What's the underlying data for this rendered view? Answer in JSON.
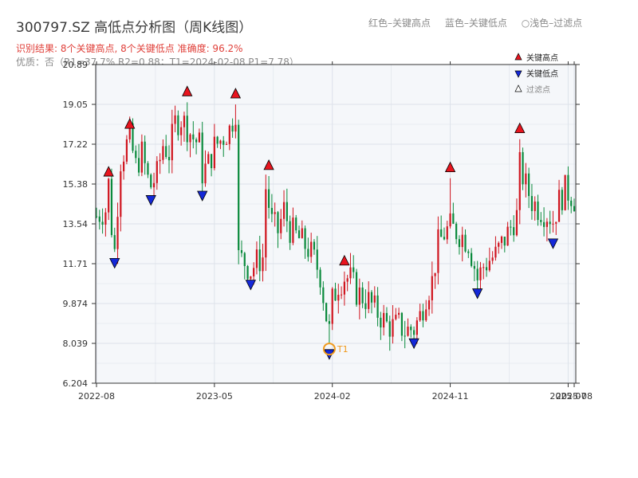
{
  "header": {
    "title": "300797.SZ 高低点分析图（周K线图）",
    "legend_red": "红色–关键高点",
    "legend_blue": "蓝色–关键低点",
    "legend_filtered": "○浅色–过滤点",
    "result": "识别结果: 8个关键高点, 8个关键低点  准确度: 96.2%",
    "quality": "优质：否（R1=37.7%  R2=0.88；T1=2024-02-08 P1=7.78）"
  },
  "colors": {
    "up": "#d0141e",
    "down": "#0a8a3c",
    "high_marker": "#e8141e",
    "low_marker": "#1428d8",
    "t1": "#f09a1e",
    "plot_bg": "#f5f7fa",
    "grid": "#dde2ea"
  },
  "chart_data": {
    "type": "candlestick",
    "title": "300797.SZ 高低点分析图（周K线图）",
    "y_ticks": [
      "6.204",
      "8.039",
      "9.874",
      "11.71",
      "13.54",
      "15.38",
      "17.22",
      "19.05",
      "20.89"
    ],
    "x_ticks": [
      {
        "label": "2022-08",
        "week": 0
      },
      {
        "label": "2023-05",
        "week": 39
      },
      {
        "label": "2024-02",
        "week": 78
      },
      {
        "label": "2024-11",
        "week": 117
      },
      {
        "label": "2025-07",
        "week": 156
      },
      {
        "label": "2025-08",
        "week": 158
      }
    ],
    "ylim": [
      6.204,
      20.89
    ],
    "xlim": [
      0,
      158
    ],
    "keypoints": [
      {
        "week": 4,
        "price": 15.6,
        "type": "high"
      },
      {
        "week": 6,
        "price": 12.1,
        "type": "low"
      },
      {
        "week": 11,
        "price": 17.8,
        "type": "high"
      },
      {
        "week": 18,
        "price": 15.0,
        "type": "low"
      },
      {
        "week": 30,
        "price": 19.3,
        "type": "high"
      },
      {
        "week": 35,
        "price": 15.2,
        "type": "low"
      },
      {
        "week": 46,
        "price": 19.2,
        "type": "high"
      },
      {
        "week": 51,
        "price": 11.1,
        "type": "low"
      },
      {
        "week": 57,
        "price": 15.9,
        "type": "high"
      },
      {
        "week": 77,
        "price": 7.9,
        "type": "low"
      },
      {
        "week": 82,
        "price": 11.5,
        "type": "high"
      },
      {
        "week": 105,
        "price": 8.4,
        "type": "low"
      },
      {
        "week": 117,
        "price": 15.8,
        "type": "high"
      },
      {
        "week": 126,
        "price": 10.7,
        "type": "low"
      },
      {
        "week": 140,
        "price": 17.6,
        "type": "high"
      },
      {
        "week": 151,
        "price": 13.0,
        "type": "low"
      }
    ],
    "t1": {
      "label": "T1",
      "week": 77,
      "price": 7.78
    },
    "legend": [
      {
        "label": "关键高点",
        "color": "#e8141e",
        "shape": "up"
      },
      {
        "label": "关键低点",
        "color": "#1428d8",
        "shape": "down"
      },
      {
        "label": "过滤点",
        "color": "#ffffff",
        "shape": "up"
      }
    ],
    "grid": true,
    "anchors": [
      [
        0,
        13.9
      ],
      [
        3,
        14.2
      ],
      [
        4,
        15.4
      ],
      [
        5,
        13.4
      ],
      [
        6,
        12.3
      ],
      [
        7,
        14.5
      ],
      [
        8,
        16.5
      ],
      [
        10,
        17.2
      ],
      [
        11,
        17.5
      ],
      [
        13,
        16.2
      ],
      [
        15,
        16.8
      ],
      [
        17,
        15.6
      ],
      [
        18,
        15.3
      ],
      [
        20,
        15.8
      ],
      [
        22,
        17.2
      ],
      [
        24,
        16.8
      ],
      [
        26,
        18.2
      ],
      [
        28,
        18.4
      ],
      [
        30,
        18.0
      ],
      [
        32,
        17.5
      ],
      [
        34,
        17.2
      ],
      [
        35,
        15.9
      ],
      [
        37,
        16.3
      ],
      [
        39,
        17.1
      ],
      [
        41,
        17.4
      ],
      [
        44,
        17.9
      ],
      [
        46,
        18.8
      ],
      [
        47,
        12.0
      ],
      [
        49,
        11.8
      ],
      [
        51,
        11.4
      ],
      [
        53,
        11.8
      ],
      [
        55,
        12.0
      ],
      [
        56,
        15.2
      ],
      [
        58,
        13.6
      ],
      [
        60,
        13.2
      ],
      [
        62,
        14.2
      ],
      [
        64,
        13.3
      ],
      [
        66,
        13.0
      ],
      [
        68,
        12.7
      ],
      [
        70,
        12.4
      ],
      [
        72,
        11.9
      ],
      [
        74,
        11.2
      ],
      [
        76,
        9.3
      ],
      [
        77,
        8.6
      ],
      [
        78,
        10.0
      ],
      [
        80,
        10.8
      ],
      [
        82,
        11.1
      ],
      [
        84,
        11.0
      ],
      [
        86,
        10.4
      ],
      [
        88,
        10.2
      ],
      [
        90,
        10.0
      ],
      [
        92,
        9.6
      ],
      [
        94,
        9.3
      ],
      [
        96,
        8.9
      ],
      [
        98,
        8.8
      ],
      [
        100,
        8.9
      ],
      [
        102,
        8.6
      ],
      [
        104,
        8.7
      ],
      [
        105,
        8.7
      ],
      [
        107,
        9.3
      ],
      [
        109,
        10.3
      ],
      [
        111,
        10.9
      ],
      [
        113,
        12.6
      ],
      [
        115,
        13.1
      ],
      [
        117,
        13.4
      ],
      [
        119,
        13.2
      ],
      [
        121,
        13.0
      ],
      [
        123,
        12.7
      ],
      [
        125,
        11.6
      ],
      [
        126,
        11.0
      ],
      [
        128,
        11.6
      ],
      [
        130,
        11.9
      ],
      [
        132,
        12.1
      ],
      [
        134,
        12.6
      ],
      [
        136,
        13.1
      ],
      [
        138,
        13.7
      ],
      [
        139,
        13.9
      ],
      [
        140,
        16.2
      ],
      [
        142,
        15.3
      ],
      [
        144,
        14.6
      ],
      [
        146,
        14.3
      ],
      [
        148,
        14.1
      ],
      [
        150,
        13.9
      ],
      [
        151,
        13.7
      ],
      [
        153,
        14.6
      ],
      [
        155,
        15.1
      ],
      [
        157,
        14.9
      ],
      [
        158,
        14.7
      ]
    ]
  }
}
